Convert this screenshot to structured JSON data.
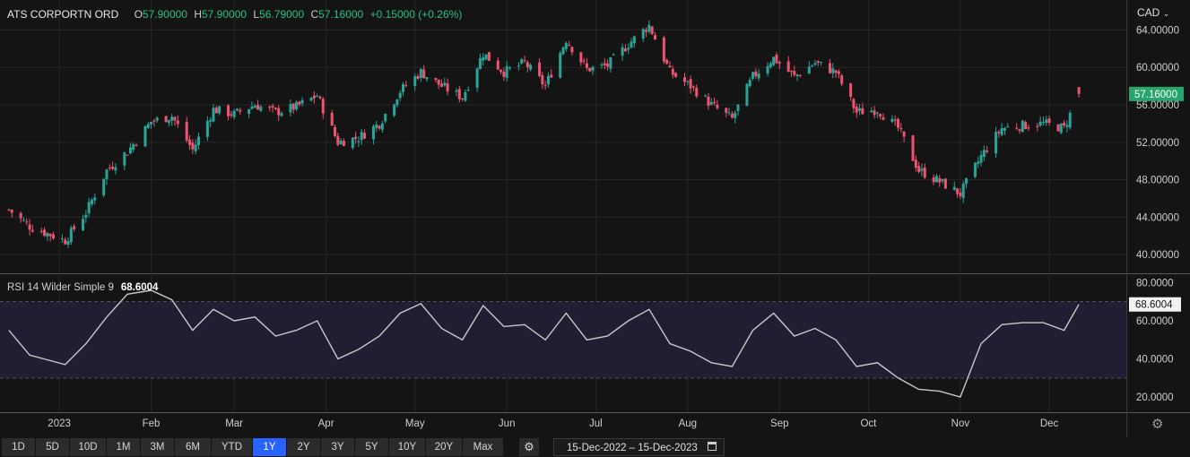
{
  "header": {
    "symbol": "ATS CORPORTN ORD",
    "open_label": "O",
    "open": "57.90000",
    "high_label": "H",
    "high": "57.90000",
    "low_label": "L",
    "low": "56.79000",
    "close_label": "C",
    "close": "57.16000",
    "change": "+0.15000 (+0.26%)"
  },
  "currency": "CAD",
  "rsi_header": {
    "label": "RSI 14 Wilder Simple 9",
    "value": "68.6004"
  },
  "toolbar": {
    "ranges": [
      "1D",
      "5D",
      "10D",
      "1M",
      "3M",
      "6M",
      "YTD",
      "1Y",
      "2Y",
      "3Y",
      "5Y",
      "10Y",
      "20Y",
      "Max"
    ],
    "active": "1Y",
    "date_range": "15-Dec-2022 – 15-Dec-2023"
  },
  "colors": {
    "up": "#26a69a",
    "down": "#ef5370",
    "rsi_line": "#c8c8c8",
    "rsi_band": "#231d33",
    "accent": "#2962ff",
    "last_price_tag": "#26a66b"
  },
  "icons": {
    "currency_dropdown": "chevron-down-icon",
    "settings": "gear-icon",
    "toolbar_settings": "settings-icon",
    "calendar": "calendar-icon"
  },
  "chart_data": [
    {
      "type": "candlestick",
      "series": [
        {
          "name": "ATS CORPORTN ORD"
        }
      ],
      "y_ticks": [
        "40.00000",
        "44.00000",
        "48.00000",
        "52.00000",
        "56.00000",
        "60.00000",
        "64.00000"
      ],
      "ylim": [
        38.0,
        67.2
      ],
      "last_price_label": "57.16000",
      "last_bar": {
        "open": 57.9,
        "high": 57.9,
        "low": 56.79,
        "close": 57.16
      },
      "x_ticks": [
        "2023",
        "Feb",
        "Mar",
        "Apr",
        "May",
        "Jun",
        "Jul",
        "Aug",
        "Sep",
        "Oct",
        "Nov",
        "Dec"
      ],
      "close_path": [
        [
          "2022-12-15",
          44.8
        ],
        [
          "2022-12-22",
          43.0
        ],
        [
          "2023-01-03",
          41.5
        ],
        [
          "2023-01-10",
          44.5
        ],
        [
          "2023-01-17",
          49.0
        ],
        [
          "2023-01-24",
          51.0
        ],
        [
          "2023-02-01",
          54.2
        ],
        [
          "2023-02-08",
          54.8
        ],
        [
          "2023-02-15",
          51.2
        ],
        [
          "2023-02-22",
          55.5
        ],
        [
          "2023-03-01",
          55.0
        ],
        [
          "2023-03-08",
          56.0
        ],
        [
          "2023-03-15",
          55.2
        ],
        [
          "2023-03-22",
          55.8
        ],
        [
          "2023-03-29",
          57.0
        ],
        [
          "2023-04-05",
          52.0
        ],
        [
          "2023-04-12",
          52.5
        ],
        [
          "2023-04-19",
          54.0
        ],
        [
          "2023-04-26",
          57.5
        ],
        [
          "2023-05-03",
          59.5
        ],
        [
          "2023-05-10",
          58.0
        ],
        [
          "2023-05-17",
          56.8
        ],
        [
          "2023-05-24",
          61.5
        ],
        [
          "2023-05-31",
          59.5
        ],
        [
          "2023-06-07",
          60.5
        ],
        [
          "2023-06-14",
          58.0
        ],
        [
          "2023-06-21",
          63.0
        ],
        [
          "2023-06-28",
          59.8
        ],
        [
          "2023-07-05",
          60.2
        ],
        [
          "2023-07-12",
          62.5
        ],
        [
          "2023-07-19",
          64.5
        ],
        [
          "2023-07-26",
          59.5
        ],
        [
          "2023-08-02",
          58.0
        ],
        [
          "2023-08-09",
          56.0
        ],
        [
          "2023-08-16",
          54.5
        ],
        [
          "2023-08-23",
          59.0
        ],
        [
          "2023-08-30",
          61.0
        ],
        [
          "2023-09-06",
          59.0
        ],
        [
          "2023-09-13",
          60.5
        ],
        [
          "2023-09-20",
          59.5
        ],
        [
          "2023-09-27",
          55.2
        ],
        [
          "2023-10-04",
          55.5
        ],
        [
          "2023-10-11",
          53.5
        ],
        [
          "2023-10-18",
          49.0
        ],
        [
          "2023-10-25",
          47.8
        ],
        [
          "2023-11-01",
          46.5
        ],
        [
          "2023-11-08",
          50.5
        ],
        [
          "2023-11-15",
          53.5
        ],
        [
          "2023-11-22",
          53.8
        ],
        [
          "2023-11-29",
          54.0
        ],
        [
          "2023-12-06",
          53.5
        ],
        [
          "2023-12-11",
          57.16
        ]
      ]
    },
    {
      "type": "line",
      "series": [
        {
          "name": "RSI 14 Wilder Simple 9"
        }
      ],
      "y_ticks": [
        "20.0000",
        "40.0000",
        "60.0000",
        "80.0000"
      ],
      "ylim": [
        12,
        84
      ],
      "bands": [
        30,
        70
      ],
      "last_value_label": "68.6004",
      "values": [
        [
          "2022-12-15",
          55
        ],
        [
          "2022-12-22",
          42
        ],
        [
          "2023-01-03",
          37
        ],
        [
          "2023-01-10",
          48
        ],
        [
          "2023-01-17",
          62
        ],
        [
          "2023-01-24",
          74
        ],
        [
          "2023-02-01",
          76
        ],
        [
          "2023-02-08",
          71
        ],
        [
          "2023-02-15",
          55
        ],
        [
          "2023-02-22",
          66
        ],
        [
          "2023-03-01",
          60
        ],
        [
          "2023-03-08",
          62
        ],
        [
          "2023-03-15",
          52
        ],
        [
          "2023-03-22",
          55
        ],
        [
          "2023-03-29",
          60
        ],
        [
          "2023-04-05",
          40
        ],
        [
          "2023-04-12",
          45
        ],
        [
          "2023-04-19",
          52
        ],
        [
          "2023-04-26",
          64
        ],
        [
          "2023-05-03",
          69
        ],
        [
          "2023-05-10",
          56
        ],
        [
          "2023-05-17",
          50
        ],
        [
          "2023-05-24",
          68
        ],
        [
          "2023-05-31",
          57
        ],
        [
          "2023-06-07",
          58
        ],
        [
          "2023-06-14",
          50
        ],
        [
          "2023-06-21",
          64
        ],
        [
          "2023-06-28",
          50
        ],
        [
          "2023-07-05",
          52
        ],
        [
          "2023-07-12",
          60
        ],
        [
          "2023-07-19",
          66
        ],
        [
          "2023-07-26",
          48
        ],
        [
          "2023-08-02",
          44
        ],
        [
          "2023-08-09",
          38
        ],
        [
          "2023-08-16",
          36
        ],
        [
          "2023-08-23",
          55
        ],
        [
          "2023-08-30",
          64
        ],
        [
          "2023-09-06",
          52
        ],
        [
          "2023-09-13",
          56
        ],
        [
          "2023-09-20",
          50
        ],
        [
          "2023-09-27",
          36
        ],
        [
          "2023-10-04",
          38
        ],
        [
          "2023-10-11",
          30
        ],
        [
          "2023-10-18",
          24
        ],
        [
          "2023-10-25",
          23
        ],
        [
          "2023-11-01",
          20
        ],
        [
          "2023-11-08",
          48
        ],
        [
          "2023-11-15",
          58
        ],
        [
          "2023-11-22",
          59
        ],
        [
          "2023-11-29",
          59
        ],
        [
          "2023-12-06",
          55
        ],
        [
          "2023-12-11",
          68.6
        ]
      ]
    }
  ]
}
